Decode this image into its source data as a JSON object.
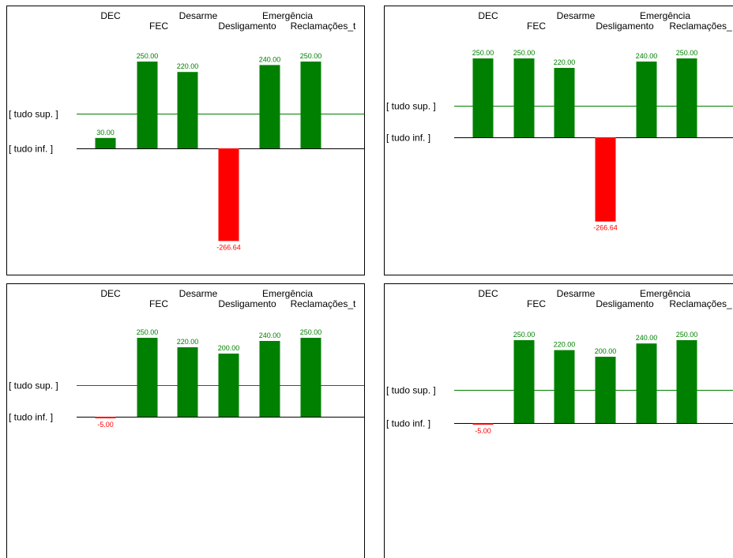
{
  "colors": {
    "positive": "#008000",
    "negative": "#ff0000",
    "upper_line": "#008000",
    "lower_line": "#000000",
    "positive_label": "#008000",
    "negative_label": "#ff0000"
  },
  "chart_data": [
    {
      "type": "bar",
      "categories": [
        "DEC",
        "FEC",
        "Desarme",
        "Desligamento",
        "Emergência",
        "Reclamações_t"
      ],
      "values": [
        30,
        250,
        220,
        -266.64,
        240,
        250
      ],
      "value_labels": [
        "30.00",
        "250.00",
        "220.00",
        "-266.64",
        "240.00",
        "250.00"
      ],
      "reference_lines": [
        {
          "label": "[ tudo sup. ]",
          "value": 100
        },
        {
          "label": "[ tudo inf. ]",
          "value": 0
        }
      ]
    },
    {
      "type": "bar",
      "categories": [
        "DEC",
        "FEC",
        "Desarme",
        "Desligamento",
        "Emergência",
        "Reclamações_"
      ],
      "values": [
        250,
        250,
        220,
        -266.64,
        240,
        250
      ],
      "value_labels": [
        "250.00",
        "250.00",
        "220.00",
        "-266.64",
        "240.00",
        "250.00"
      ],
      "reference_lines": [
        {
          "label": "[ tudo sup. ]",
          "value": 100
        },
        {
          "label": "[ tudo inf. ]",
          "value": 0
        }
      ]
    },
    {
      "type": "bar",
      "categories": [
        "DEC",
        "FEC",
        "Desarme",
        "Desligamento",
        "Emergência",
        "Reclamações_t"
      ],
      "values": [
        -5,
        250,
        220,
        200,
        240,
        250
      ],
      "value_labels": [
        "-5.00",
        "250.00",
        "220.00",
        "200.00",
        "240.00",
        "250.00"
      ],
      "reference_lines": [
        {
          "label": "[ tudo sup. ]",
          "value": 100
        },
        {
          "label": "[ tudo inf. ]",
          "value": 0
        }
      ]
    },
    {
      "type": "bar",
      "categories": [
        "DEC",
        "FEC",
        "Desarme",
        "Desligamento",
        "Emergência",
        "Reclamações_"
      ],
      "values": [
        -5,
        250,
        220,
        200,
        240,
        250
      ],
      "value_labels": [
        "-5.00",
        "250.00",
        "220.00",
        "200.00",
        "240.00",
        "250.00"
      ],
      "reference_lines": [
        {
          "label": "[ tudo sup. ]",
          "value": 100
        },
        {
          "label": "[ tudo inf. ]",
          "value": 0
        }
      ]
    }
  ]
}
